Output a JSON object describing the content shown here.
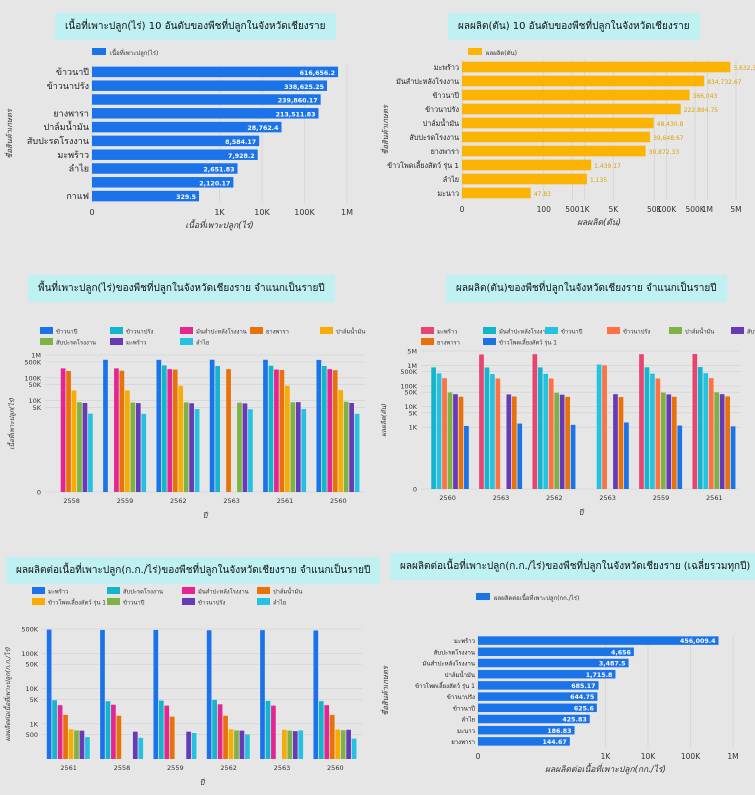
{
  "chart_data": [
    {
      "id": "c1",
      "type": "bar",
      "orientation": "horizontal",
      "title": "เนื้อที่เพาะปลูก(ไร่) 10 อันดับของพืชที่ปลูกในจังหวัดเชียงราย",
      "legend": [
        "เนื้อที่เพาะปลูก(ไร่)"
      ],
      "xlabel": "เนื้อที่เพาะปลูก(ไร่)",
      "ylabel": "ชื่อสินค้าเกษตร",
      "scale": "log",
      "xlim": [
        1,
        1000000
      ],
      "tick_labels": [
        "0",
        "1K",
        "10K",
        "100K",
        "1M"
      ],
      "color": "#1a73e8",
      "categories": [
        "ข้าวนาปี",
        "ข้าวนาปรัง",
        "",
        "ยางพารา",
        "ปาล์มน้ำมัน",
        "สับปะรดโรงงาน",
        "มะพร้าว",
        "ลำไย",
        "",
        "กาแฟ"
      ],
      "values": [
        616656.2,
        338625.25,
        239860.17,
        213511.83,
        28762.4,
        8584.17,
        7928.2,
        2651.83,
        2120.17,
        329.5
      ],
      "value_labels": [
        "616,656.2",
        "338,625.25",
        "239,860.17",
        "213,511.83",
        "28,762.4",
        "8,584.17",
        "7,928.2",
        "2,651.83",
        "2,120.17",
        "329.5"
      ]
    },
    {
      "id": "c2",
      "type": "bar",
      "orientation": "horizontal",
      "title": "ผลผลิต(ตัน) 10 อันดับของพืชที่ปลูกในจังหวัดเชียงราย",
      "legend": [
        "ผลผลิต(ตัน)"
      ],
      "xlabel": "ผลผลิต(ตัน)",
      "ylabel": "ชื่อสินค้าเกษตร",
      "scale": "log",
      "xlim": [
        1,
        5000000
      ],
      "tick_labels": [
        "0",
        "100",
        "500",
        "1K",
        "5K",
        "50K",
        "100K",
        "500K",
        "1M",
        "5M"
      ],
      "color": "#fbb404",
      "categories": [
        "มะพร้าว",
        "มันสำปะหลังโรงงาน",
        "ข้าวนาปี",
        "ข้าวนาปรัง",
        "ปาล์มน้ำมัน",
        "สับปะรดโรงงาน",
        "ยางพารา",
        "ข้าวโพดเลี้ยงสัตว์ รุ่น 1",
        "ลำไย",
        "มะนาว"
      ],
      "values": [
        3632372,
        834732.67,
        366043,
        222894.75,
        48430.8,
        39648.67,
        30872.33,
        1439.17,
        1135,
        47.83
      ],
      "value_labels": [
        "3,632,372",
        "834,732.67",
        "366,043",
        "222,894.75",
        "48,430.8",
        "39,648.67",
        "30,872.33",
        "1,439.17",
        "1,135",
        "47.83"
      ]
    },
    {
      "id": "c3",
      "type": "bar",
      "title": "พื้นที่เพาะปลูก(ไร่)ของพืชที่ปลูกในจังหวัดเชียงราย จำแนกเป็นรายปี",
      "xlabel": "ปี",
      "ylabel": "เนื้อที่เพาะปลูก(ไร่)",
      "scale": "log",
      "ylim": [
        1,
        1000000
      ],
      "tick_labels": [
        "0",
        "5K",
        "10K",
        "50K",
        "100K",
        "500K",
        "1M"
      ],
      "categories": [
        "2558",
        "2559",
        "2562",
        "2563",
        "2561",
        "2560"
      ],
      "series": [
        {
          "name": "ข้าวนาปี",
          "color": "#1a73e8",
          "values": [
            null,
            620000,
            615000,
            620000,
            620000,
            610000
          ]
        },
        {
          "name": "ข้าวนาปรัง",
          "color": "#12b5cb",
          "values": [
            null,
            null,
            350000,
            330000,
            340000,
            330000
          ]
        },
        {
          "name": "มันสำปะหลังโรงงาน",
          "color": "#e52592",
          "values": [
            260000,
            260000,
            240000,
            null,
            230000,
            240000
          ]
        },
        {
          "name": "ยางพารา",
          "color": "#e8710a",
          "values": [
            200000,
            205000,
            230000,
            240000,
            220000,
            215000
          ]
        },
        {
          "name": "ปาล์มน้ำมัน",
          "color": "#f9ab00",
          "values": [
            28000,
            28000,
            45000,
            null,
            45000,
            29000
          ]
        },
        {
          "name": "สับปะรดโรงงาน",
          "color": "#7cb342",
          "values": [
            8500,
            8300,
            8400,
            8200,
            8500,
            9000
          ]
        },
        {
          "name": "มะพร้าว",
          "color": "#673ab7",
          "values": [
            7900,
            7800,
            7700,
            7600,
            8600,
            7900
          ]
        },
        {
          "name": "ลำไย",
          "color": "#24c1e0",
          "values": [
            2700,
            2650,
            4300,
            4200,
            4300,
            2650
          ]
        }
      ]
    },
    {
      "id": "c4",
      "type": "bar",
      "title": "ผลผลิต(ตัน)ของพืชที่ปลูกในจังหวัดเชียงราย จำแนกเป็นรายปี",
      "xlabel": "ปี",
      "ylabel": "ผลผลิต(ตัน)",
      "scale": "log",
      "ylim": [
        1,
        5000000
      ],
      "tick_labels": [
        "0",
        "1K",
        "5K",
        "10K",
        "50K",
        "100K",
        "500K",
        "1M",
        "5M"
      ],
      "categories": [
        "2560",
        "2563",
        "2562",
        "2563",
        "2559",
        "2561"
      ],
      "series": [
        {
          "name": "มะพร้าว",
          "color": "#e8446f",
          "values": [
            null,
            3400000,
            3500000,
            null,
            3500000,
            3600000
          ]
        },
        {
          "name": "มันสำปะหลังโรงงาน",
          "color": "#12b5cb",
          "values": [
            800000,
            790000,
            800000,
            null,
            810000,
            830000
          ]
        },
        {
          "name": "ข้าวนาปี",
          "color": "#24c1e0",
          "values": [
            410000,
            380000,
            390000,
            1100000,
            400000,
            420000
          ]
        },
        {
          "name": "ข้าวนาปรัง",
          "color": "#ff7043",
          "values": [
            240000,
            230000,
            230000,
            1000000,
            230000,
            240000
          ]
        },
        {
          "name": "ปาล์มน้ำมัน",
          "color": "#7cb342",
          "values": [
            48000,
            null,
            47000,
            null,
            48000,
            49000
          ]
        },
        {
          "name": "สับปะรดโรงงาน",
          "color": "#673ab7",
          "values": [
            40000,
            39000,
            38000,
            40000,
            39000,
            40000
          ]
        },
        {
          "name": "ยางพารา",
          "color": "#e8710a",
          "values": [
            30000,
            31000,
            30000,
            29000,
            30000,
            31000
          ]
        },
        {
          "name": "ข้าวโพดเลี้ยงสัตว์ รุ่น 1",
          "color": "#1a73e8",
          "values": [
            1150,
            1500,
            1300,
            1700,
            1200,
            1100
          ]
        }
      ]
    },
    {
      "id": "c5",
      "type": "bar",
      "title": "ผลผลิตต่อเนื้อที่เพาะปลูก(ก.ก./ไร่)ของพืชที่ปลูกในจังหวัดเชียงราย จำแนกเป็นรายปี",
      "xlabel": "ปี",
      "ylabel": "ผลผลิตต่อเนื้อที่เพาะปลูก(ก.ก./ไร่)",
      "scale": "log",
      "ylim": [
        100,
        500000
      ],
      "tick_labels": [
        "500",
        "1K",
        "5K",
        "10K",
        "50K",
        "100K",
        "500K"
      ],
      "categories": [
        "2561",
        "2558",
        "2559",
        "2562",
        "2563",
        "2560"
      ],
      "series": [
        {
          "name": "มะพร้าว",
          "color": "#1a73e8",
          "values": [
            480000,
            470000,
            470000,
            460000,
            465000,
            455000
          ]
        },
        {
          "name": "สับปะรดโรงงาน",
          "color": "#12b5cb",
          "values": [
            4700,
            4400,
            4600,
            4800,
            4500,
            4400
          ]
        },
        {
          "name": "มันสำปะหลังโรงงาน",
          "color": "#e52592",
          "values": [
            3400,
            3500,
            3300,
            3600,
            3300,
            3400
          ]
        },
        {
          "name": "ปาล์มน้ำมัน",
          "color": "#e8710a",
          "values": [
            1800,
            1700,
            1600,
            1700,
            null,
            1800
          ]
        },
        {
          "name": "ข้าวโพดเลี้ยงสัตว์ รุ่น 1",
          "color": "#f9ab00",
          "values": [
            700,
            null,
            null,
            700,
            680,
            690
          ]
        },
        {
          "name": "ข้าวนาปี",
          "color": "#7cb342",
          "values": [
            650,
            null,
            null,
            650,
            640,
            660
          ]
        },
        {
          "name": "ข้าวนาปรัง",
          "color": "#673ab7",
          "values": [
            640,
            600,
            600,
            640,
            620,
            680
          ]
        },
        {
          "name": "ลำไย",
          "color": "#24c1e0",
          "values": [
            420,
            400,
            550,
            500,
            650,
            380
          ]
        }
      ]
    },
    {
      "id": "c6",
      "type": "bar",
      "orientation": "horizontal",
      "title": "ผลผลิตต่อเนื้อที่เพาะปลูก(ก.ก./ไร่)ของพืชที่ปลูกในจังหวัดเชียงราย (เฉลี่ยรวมทุกปี)",
      "legend": [
        "ผลผลิตต่อเนื้อที่เพาะปลูก(กก./ไร่)"
      ],
      "xlabel": "ผลผลิตต่อเนื้อที่เพาะปลูก(กก./ไร่)",
      "ylabel": "ชื่อสินค้าเกษตร",
      "scale": "log",
      "xlim": [
        1,
        1000000
      ],
      "tick_labels": [
        "0",
        "1K",
        "10K",
        "100K",
        "1M"
      ],
      "color": "#1a73e8",
      "categories": [
        "มะพร้าว",
        "สับปะรดโรงงาน",
        "มันสำปะหลังโรงงาน",
        "ปาล์มน้ำมัน",
        "ข้าวโพดเลี้ยงสัตว์ รุ่น 1",
        "ข้าวนาปรัง",
        "ข้าวนาปี",
        "ลำไย",
        "มะนาว",
        "ยางพารา"
      ],
      "values": [
        456009.4,
        4656,
        3487.5,
        1715.8,
        685.17,
        644.75,
        625.6,
        425.83,
        186.83,
        144.67
      ],
      "value_labels": [
        "456,009.4",
        "4,656",
        "3,487.5",
        "1,715.8",
        "685.17",
        "644.75",
        "625.6",
        "425.83",
        "186.83",
        "144.67"
      ]
    }
  ]
}
